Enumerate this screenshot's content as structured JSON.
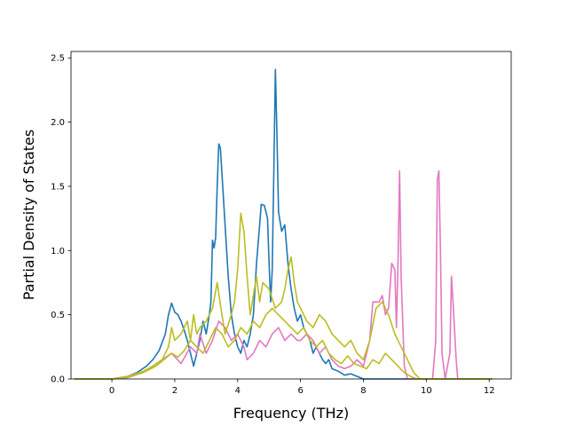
{
  "chart_data": {
    "type": "line",
    "title": "",
    "xlabel": "Frequency (THz)",
    "ylabel": "Partial Density of States",
    "xlim": [
      -1.3,
      12.7
    ],
    "ylim": [
      0.0,
      2.55
    ],
    "xticks": [
      "0",
      "2",
      "4",
      "6",
      "8",
      "10",
      "12"
    ],
    "yticks": [
      "0.0",
      "0.5",
      "1.0",
      "1.5",
      "2.0",
      "2.5"
    ],
    "grid": false,
    "legend": "none",
    "colors": {
      "blue": "#1f77b4",
      "purple": "#9467bd",
      "pink": "#e377c2",
      "olive": "#bcbd22"
    },
    "series": [
      {
        "color": "#1f77b4",
        "points": [
          [
            -1.2,
            0
          ],
          [
            0,
            0
          ],
          [
            0.5,
            0.02
          ],
          [
            0.8,
            0.05
          ],
          [
            1.1,
            0.1
          ],
          [
            1.3,
            0.15
          ],
          [
            1.5,
            0.22
          ],
          [
            1.7,
            0.35
          ],
          [
            1.8,
            0.5
          ],
          [
            1.9,
            0.59
          ],
          [
            2.0,
            0.52
          ],
          [
            2.1,
            0.5
          ],
          [
            2.2,
            0.45
          ],
          [
            2.3,
            0.38
          ],
          [
            2.4,
            0.3
          ],
          [
            2.5,
            0.2
          ],
          [
            2.6,
            0.1
          ],
          [
            2.7,
            0.2
          ],
          [
            2.8,
            0.3
          ],
          [
            2.9,
            0.45
          ],
          [
            3.0,
            0.35
          ],
          [
            3.1,
            0.5
          ],
          [
            3.15,
            0.6
          ],
          [
            3.2,
            1.08
          ],
          [
            3.25,
            1.02
          ],
          [
            3.3,
            1.1
          ],
          [
            3.35,
            1.5
          ],
          [
            3.4,
            1.83
          ],
          [
            3.45,
            1.8
          ],
          [
            3.5,
            1.6
          ],
          [
            3.6,
            1.2
          ],
          [
            3.7,
            0.8
          ],
          [
            3.8,
            0.5
          ],
          [
            3.9,
            0.35
          ],
          [
            4.0,
            0.25
          ],
          [
            4.1,
            0.2
          ],
          [
            4.2,
            0.3
          ],
          [
            4.3,
            0.25
          ],
          [
            4.4,
            0.35
          ],
          [
            4.5,
            0.5
          ],
          [
            4.6,
            0.9
          ],
          [
            4.7,
            1.2
          ],
          [
            4.75,
            1.36
          ],
          [
            4.85,
            1.35
          ],
          [
            4.95,
            1.25
          ],
          [
            5.0,
            0.9
          ],
          [
            5.05,
            0.6
          ],
          [
            5.1,
            0.85
          ],
          [
            5.15,
            1.6
          ],
          [
            5.2,
            2.41
          ],
          [
            5.25,
            1.9
          ],
          [
            5.3,
            1.3
          ],
          [
            5.4,
            1.15
          ],
          [
            5.5,
            1.2
          ],
          [
            5.6,
            0.9
          ],
          [
            5.7,
            0.7
          ],
          [
            5.8,
            0.55
          ],
          [
            5.9,
            0.45
          ],
          [
            6.0,
            0.5
          ],
          [
            6.1,
            0.4
          ],
          [
            6.2,
            0.35
          ],
          [
            6.3,
            0.3
          ],
          [
            6.4,
            0.2
          ],
          [
            6.5,
            0.25
          ],
          [
            6.6,
            0.2
          ],
          [
            6.7,
            0.15
          ],
          [
            6.8,
            0.12
          ],
          [
            6.9,
            0.15
          ],
          [
            7.0,
            0.08
          ],
          [
            7.2,
            0.06
          ],
          [
            7.4,
            0.03
          ],
          [
            7.6,
            0.04
          ],
          [
            7.8,
            0.02
          ],
          [
            8.0,
            0
          ],
          [
            12.1,
            0
          ]
        ]
      },
      {
        "color": "#e377c2",
        "points": [
          [
            -1.2,
            0
          ],
          [
            0,
            0
          ],
          [
            0.5,
            0.01
          ],
          [
            1.0,
            0.05
          ],
          [
            1.3,
            0.1
          ],
          [
            1.6,
            0.15
          ],
          [
            1.9,
            0.2
          ],
          [
            2.2,
            0.12
          ],
          [
            2.5,
            0.25
          ],
          [
            2.7,
            0.2
          ],
          [
            2.8,
            0.35
          ],
          [
            3.0,
            0.2
          ],
          [
            3.2,
            0.3
          ],
          [
            3.4,
            0.45
          ],
          [
            3.6,
            0.4
          ],
          [
            3.8,
            0.3
          ],
          [
            4.0,
            0.35
          ],
          [
            4.2,
            0.25
          ],
          [
            4.3,
            0.15
          ],
          [
            4.5,
            0.2
          ],
          [
            4.7,
            0.3
          ],
          [
            4.9,
            0.25
          ],
          [
            5.1,
            0.35
          ],
          [
            5.3,
            0.4
          ],
          [
            5.5,
            0.3
          ],
          [
            5.7,
            0.35
          ],
          [
            5.9,
            0.3
          ],
          [
            6.0,
            0.3
          ],
          [
            6.2,
            0.35
          ],
          [
            6.4,
            0.3
          ],
          [
            6.6,
            0.2
          ],
          [
            6.8,
            0.25
          ],
          [
            7.0,
            0.15
          ],
          [
            7.2,
            0.1
          ],
          [
            7.4,
            0.08
          ],
          [
            7.6,
            0.1
          ],
          [
            7.8,
            0.15
          ],
          [
            8.0,
            0.1
          ],
          [
            8.2,
            0.3
          ],
          [
            8.3,
            0.6
          ],
          [
            8.5,
            0.6
          ],
          [
            8.6,
            0.65
          ],
          [
            8.7,
            0.5
          ],
          [
            8.8,
            0.55
          ],
          [
            8.9,
            0.9
          ],
          [
            9.0,
            0.85
          ],
          [
            9.05,
            0.4
          ],
          [
            9.1,
            0.9
          ],
          [
            9.15,
            1.62
          ],
          [
            9.2,
            0.8
          ],
          [
            9.3,
            0.1
          ],
          [
            9.4,
            0
          ],
          [
            10.2,
            0
          ],
          [
            10.3,
            0.3
          ],
          [
            10.35,
            1.55
          ],
          [
            10.4,
            1.62
          ],
          [
            10.45,
            1.0
          ],
          [
            10.5,
            0.2
          ],
          [
            10.6,
            0
          ],
          [
            10.75,
            0.2
          ],
          [
            10.8,
            0.8
          ],
          [
            10.85,
            0.6
          ],
          [
            10.95,
            0.15
          ],
          [
            11.0,
            0
          ],
          [
            12.1,
            0
          ]
        ]
      },
      {
        "color": "#bcbd22",
        "points": [
          [
            -1.2,
            0
          ],
          [
            0,
            0
          ],
          [
            0.5,
            0.02
          ],
          [
            1.0,
            0.06
          ],
          [
            1.3,
            0.1
          ],
          [
            1.6,
            0.15
          ],
          [
            1.8,
            0.25
          ],
          [
            1.9,
            0.4
          ],
          [
            2.0,
            0.3
          ],
          [
            2.2,
            0.35
          ],
          [
            2.4,
            0.45
          ],
          [
            2.5,
            0.3
          ],
          [
            2.6,
            0.5
          ],
          [
            2.7,
            0.35
          ],
          [
            2.8,
            0.4
          ],
          [
            3.0,
            0.45
          ],
          [
            3.2,
            0.55
          ],
          [
            3.35,
            0.75
          ],
          [
            3.5,
            0.5
          ],
          [
            3.6,
            0.35
          ],
          [
            3.8,
            0.5
          ],
          [
            3.9,
            0.6
          ],
          [
            4.0,
            0.85
          ],
          [
            4.1,
            1.29
          ],
          [
            4.2,
            1.15
          ],
          [
            4.3,
            0.8
          ],
          [
            4.4,
            0.5
          ],
          [
            4.5,
            0.65
          ],
          [
            4.6,
            0.8
          ],
          [
            4.7,
            0.6
          ],
          [
            4.8,
            0.75
          ],
          [
            5.0,
            0.7
          ],
          [
            5.2,
            0.55
          ],
          [
            5.4,
            0.6
          ],
          [
            5.5,
            0.7
          ],
          [
            5.6,
            0.85
          ],
          [
            5.7,
            0.95
          ],
          [
            5.8,
            0.75
          ],
          [
            5.9,
            0.6
          ],
          [
            6.0,
            0.55
          ],
          [
            6.2,
            0.45
          ],
          [
            6.4,
            0.4
          ],
          [
            6.6,
            0.5
          ],
          [
            6.8,
            0.45
          ],
          [
            7.0,
            0.35
          ],
          [
            7.2,
            0.3
          ],
          [
            7.4,
            0.25
          ],
          [
            7.6,
            0.3
          ],
          [
            7.8,
            0.2
          ],
          [
            8.0,
            0.15
          ],
          [
            8.2,
            0.3
          ],
          [
            8.4,
            0.55
          ],
          [
            8.6,
            0.6
          ],
          [
            8.8,
            0.5
          ],
          [
            9.0,
            0.35
          ],
          [
            9.2,
            0.25
          ],
          [
            9.4,
            0.15
          ],
          [
            9.6,
            0.05
          ],
          [
            9.8,
            0
          ],
          [
            12.1,
            0
          ]
        ]
      },
      {
        "color": "#bcbd22",
        "points": [
          [
            -1.2,
            0
          ],
          [
            0,
            0
          ],
          [
            0.5,
            0.015
          ],
          [
            1.0,
            0.05
          ],
          [
            1.4,
            0.1
          ],
          [
            1.7,
            0.16
          ],
          [
            1.9,
            0.2
          ],
          [
            2.1,
            0.17
          ],
          [
            2.3,
            0.22
          ],
          [
            2.5,
            0.3
          ],
          [
            2.7,
            0.25
          ],
          [
            2.9,
            0.2
          ],
          [
            3.1,
            0.3
          ],
          [
            3.3,
            0.4
          ],
          [
            3.5,
            0.35
          ],
          [
            3.7,
            0.25
          ],
          [
            3.9,
            0.3
          ],
          [
            4.1,
            0.4
          ],
          [
            4.3,
            0.35
          ],
          [
            4.5,
            0.45
          ],
          [
            4.7,
            0.4
          ],
          [
            4.9,
            0.5
          ],
          [
            5.1,
            0.55
          ],
          [
            5.3,
            0.5
          ],
          [
            5.5,
            0.45
          ],
          [
            5.7,
            0.4
          ],
          [
            5.9,
            0.35
          ],
          [
            6.1,
            0.4
          ],
          [
            6.3,
            0.3
          ],
          [
            6.5,
            0.25
          ],
          [
            6.7,
            0.3
          ],
          [
            6.9,
            0.2
          ],
          [
            7.1,
            0.15
          ],
          [
            7.3,
            0.12
          ],
          [
            7.5,
            0.18
          ],
          [
            7.7,
            0.12
          ],
          [
            7.9,
            0.1
          ],
          [
            8.1,
            0.08
          ],
          [
            8.3,
            0.15
          ],
          [
            8.5,
            0.12
          ],
          [
            8.7,
            0.2
          ],
          [
            8.9,
            0.15
          ],
          [
            9.1,
            0.1
          ],
          [
            9.3,
            0.05
          ],
          [
            9.5,
            0.02
          ],
          [
            9.7,
            0
          ],
          [
            12.1,
            0
          ]
        ]
      }
    ]
  }
}
